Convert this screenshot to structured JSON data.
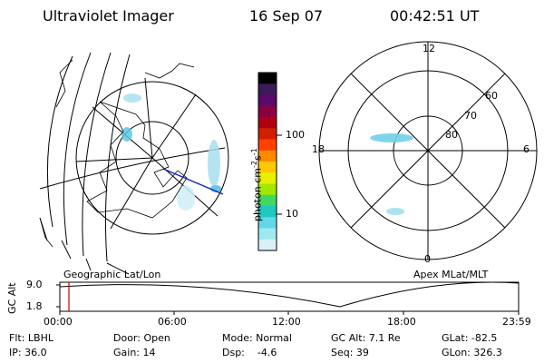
{
  "header": {
    "instrument": "Ultraviolet Imager",
    "date": "16 Sep 07",
    "time": "00:42:51 UT"
  },
  "left_panel": {
    "label": "Geographic Lat/Lon"
  },
  "right_panel": {
    "label": "Apex MLat/MLT",
    "mlt_labels": {
      "top": "12",
      "left": "18",
      "right": "6",
      "bottom": "0"
    },
    "lat_labels": [
      "60",
      "70",
      "80"
    ]
  },
  "colorbar": {
    "unit_label": "photon cm",
    "exp1": "-2",
    "mid": "s",
    "exp2": "-1",
    "tick_labels": [
      "100",
      "10"
    ],
    "colors": [
      "#000000",
      "#3b1a5a",
      "#5a0a6a",
      "#8a0040",
      "#b00010",
      "#d02000",
      "#ff4000",
      "#ff8a00",
      "#ffc800",
      "#e8f000",
      "#a0e800",
      "#40d860",
      "#20c8c0",
      "#60d8e8",
      "#a0e8f0",
      "#d8f0f8"
    ]
  },
  "timeline": {
    "axis_label": "GC Alt",
    "y_ticks": [
      "9.0",
      "1.8"
    ],
    "x_ticks": [
      "00:00",
      "06:00",
      "12:00",
      "18:00",
      "23:59"
    ],
    "current_marker_time": "00:42:51",
    "marker_color": "#c00000"
  },
  "footer": {
    "row1": [
      {
        "label": "Flt: LBHL"
      },
      {
        "label": "Door: Open"
      },
      {
        "label": "Mode: Normal"
      },
      {
        "label": "GC Alt: 7.1 Re"
      },
      {
        "label": "GLat: -82.5"
      }
    ],
    "row2": [
      {
        "label": "IP: 36.0"
      },
      {
        "label": "Gain: 14"
      },
      {
        "label": "Dsp:    -4.6"
      },
      {
        "label": "Seq: 39"
      },
      {
        "label": "GLon: 326.3"
      }
    ]
  }
}
